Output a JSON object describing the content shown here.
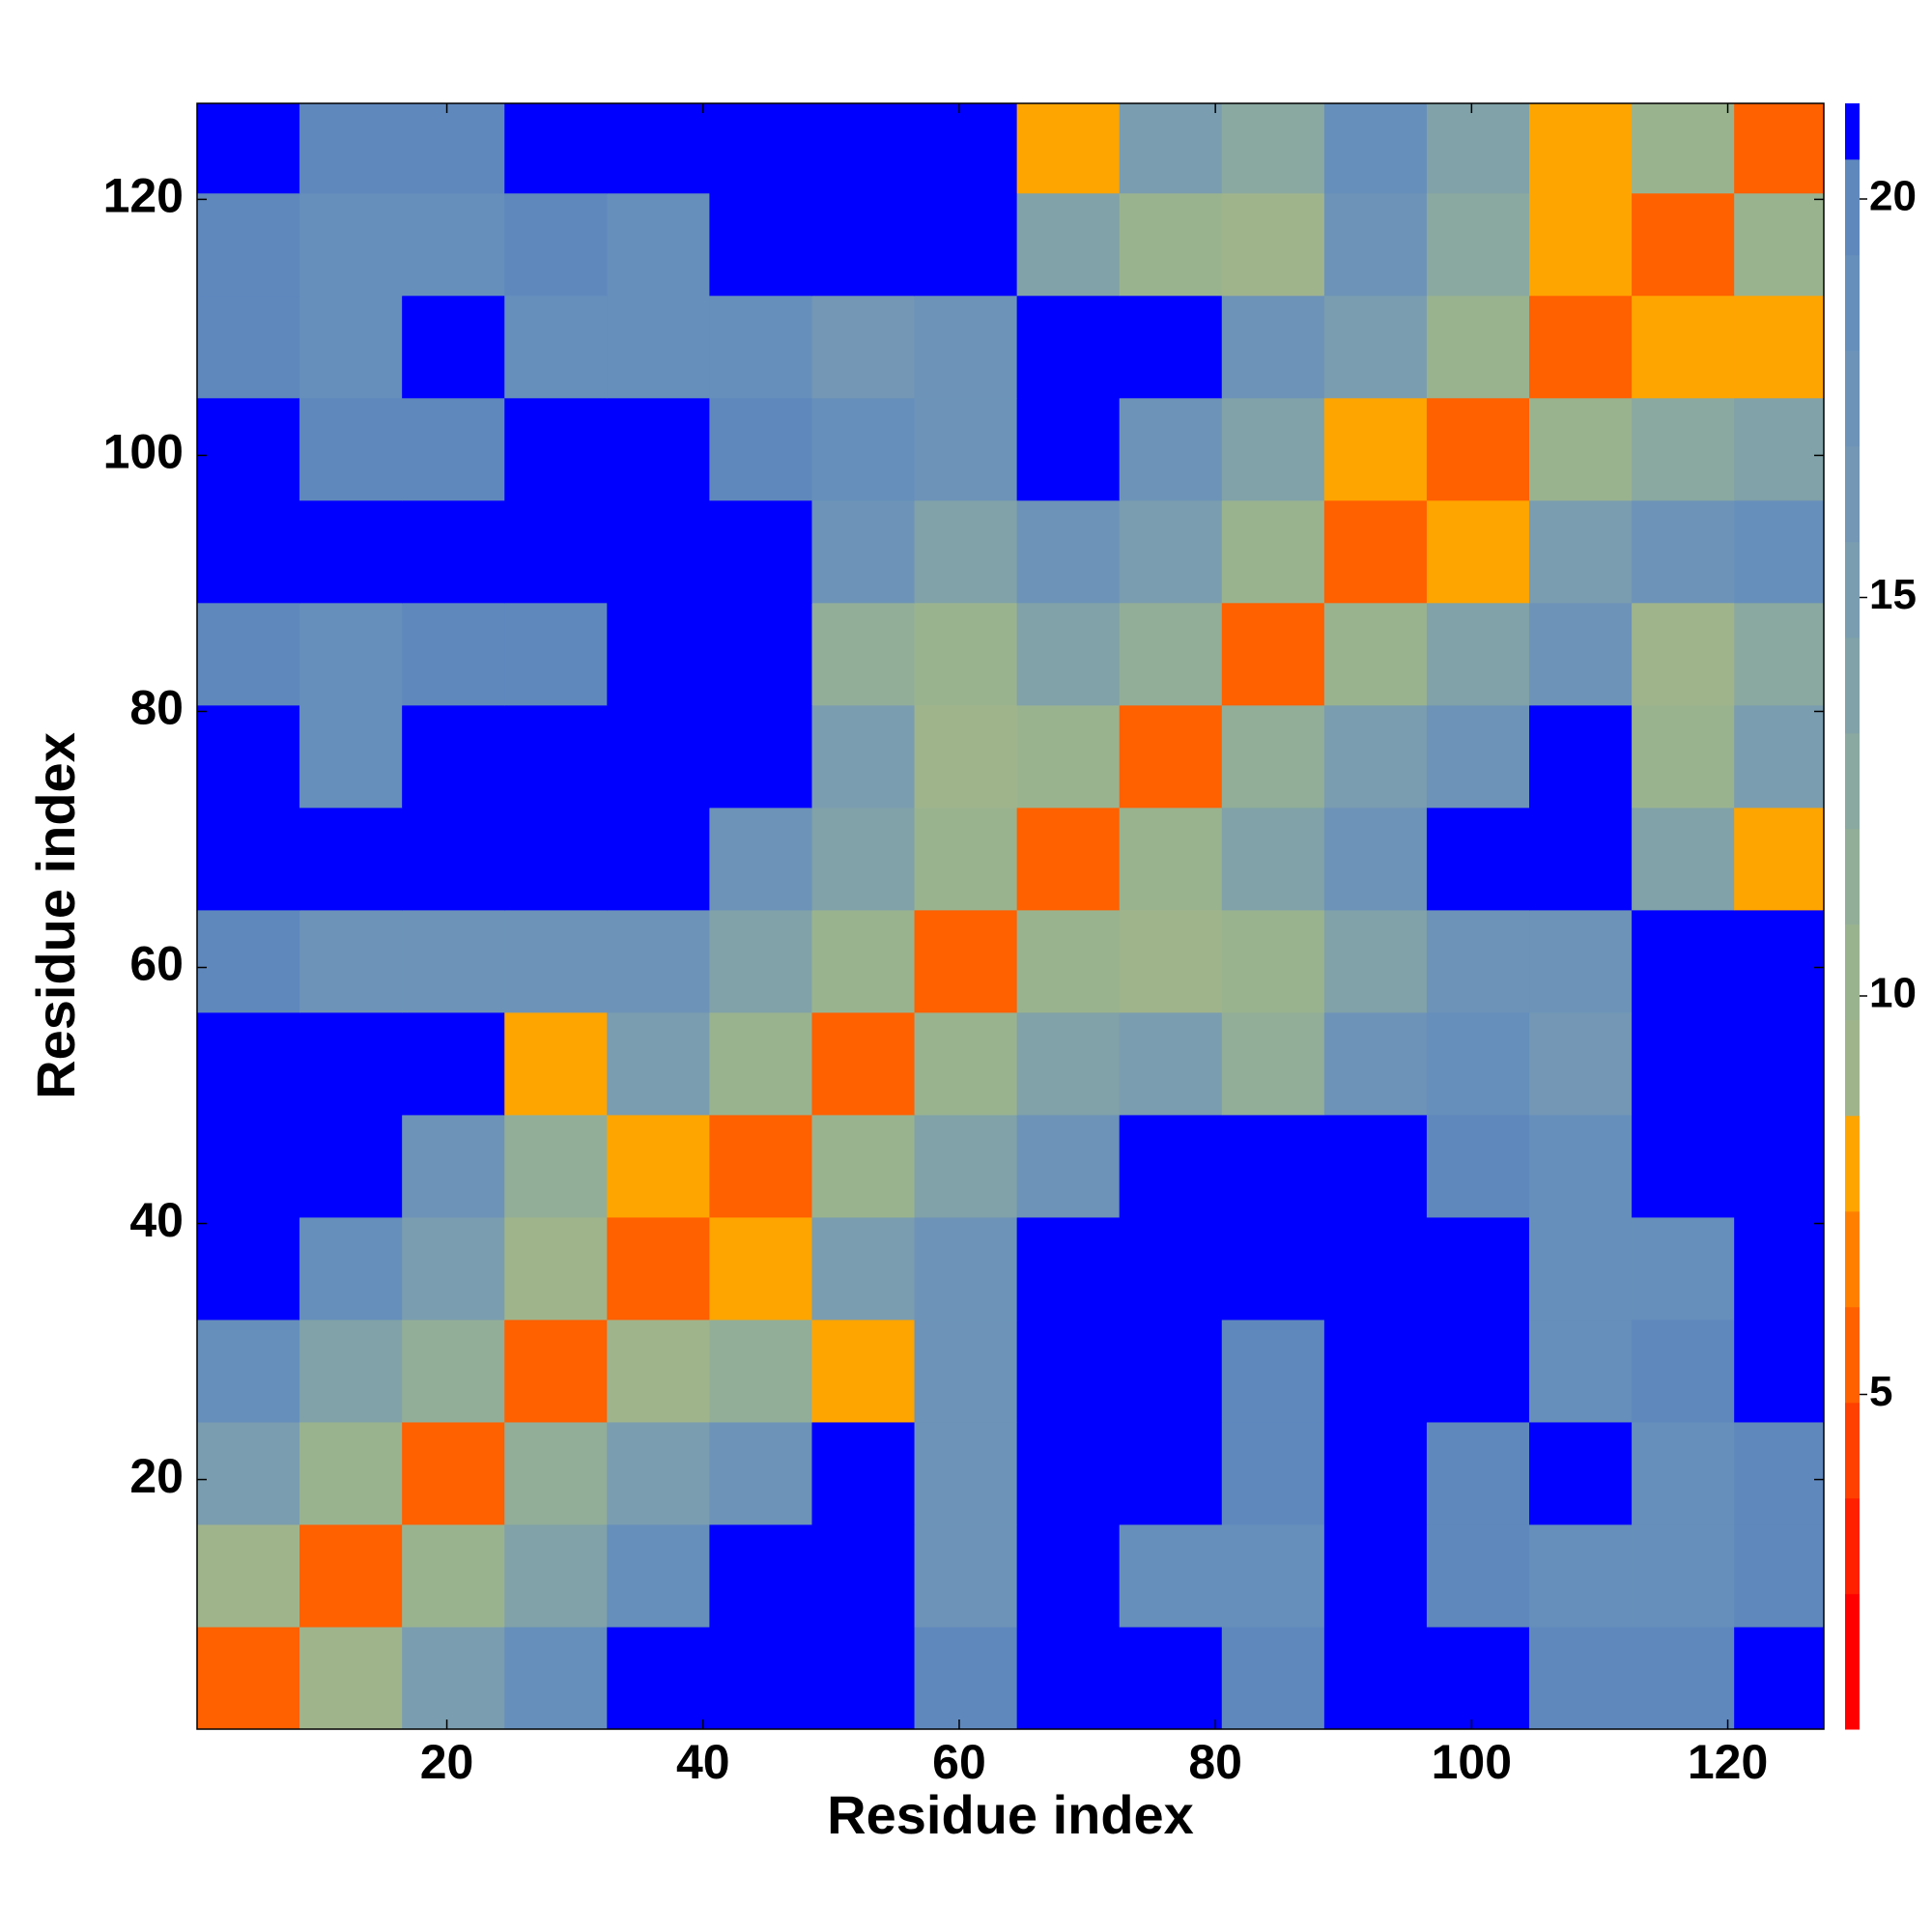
{
  "chart_data": {
    "type": "heatmap",
    "xlabel": "Residue index",
    "ylabel": "Residue index",
    "x_bins": [
      0.5,
      8.5,
      16.5,
      24.5,
      32.5,
      40.5,
      48.5,
      56.5,
      64.5,
      72.5,
      80.5,
      88.5,
      96.5,
      104.5,
      112.5,
      120.5,
      127.5
    ],
    "y_bins": [
      0.5,
      8.5,
      16.5,
      24.5,
      32.5,
      40.5,
      48.5,
      56.5,
      64.5,
      72.5,
      80.5,
      88.5,
      96.5,
      104.5,
      112.5,
      120.5,
      127.5
    ],
    "values": [
      [
        6,
        9,
        15,
        19,
        21,
        21,
        21,
        20,
        21,
        21,
        20,
        21,
        21,
        20,
        20,
        21
      ],
      [
        9,
        6,
        10,
        14,
        19,
        21,
        21,
        18,
        21,
        19,
        19,
        21,
        20,
        19,
        19,
        20
      ],
      [
        15,
        10,
        6,
        11,
        15,
        18,
        21,
        17,
        21,
        21,
        20,
        21,
        20,
        21,
        19,
        20
      ],
      [
        19,
        14,
        11,
        6,
        9,
        12,
        8,
        17,
        21,
        21,
        20,
        21,
        21,
        19,
        20,
        21
      ],
      [
        21,
        19,
        15,
        9,
        6,
        8,
        15,
        18,
        21,
        21,
        21,
        21,
        21,
        19,
        19,
        21
      ],
      [
        21,
        21,
        18,
        12,
        8,
        6,
        10,
        14,
        17,
        21,
        21,
        21,
        20,
        19,
        21,
        21
      ],
      [
        21,
        21,
        21,
        8,
        15,
        10,
        6,
        10,
        14,
        15,
        11,
        17,
        19,
        16,
        21,
        21
      ],
      [
        20,
        18,
        17,
        17,
        18,
        14,
        10,
        6,
        10,
        9,
        10,
        14,
        18,
        17,
        21,
        21
      ],
      [
        21,
        21,
        21,
        21,
        21,
        17,
        14,
        10,
        6,
        10,
        14,
        17,
        21,
        21,
        14,
        8
      ],
      [
        21,
        19,
        21,
        21,
        21,
        21,
        15,
        9,
        10,
        6,
        11,
        15,
        17,
        21,
        10,
        15
      ],
      [
        20,
        19,
        20,
        20,
        21,
        21,
        11,
        10,
        14,
        11,
        6,
        10,
        14,
        17,
        9,
        13
      ],
      [
        21,
        21,
        21,
        21,
        21,
        21,
        17,
        14,
        17,
        15,
        10,
        6,
        8,
        15,
        17,
        19
      ],
      [
        21,
        20,
        20,
        21,
        21,
        20,
        19,
        18,
        21,
        17,
        14,
        8,
        6,
        10,
        13,
        14
      ],
      [
        20,
        19,
        21,
        19,
        19,
        19,
        16,
        17,
        21,
        21,
        17,
        15,
        10,
        6,
        8,
        8
      ],
      [
        20,
        19,
        19,
        20,
        19,
        21,
        21,
        21,
        14,
        10,
        9,
        17,
        13,
        8,
        6,
        10
      ],
      [
        21,
        20,
        20,
        21,
        21,
        21,
        21,
        21,
        8,
        15,
        13,
        19,
        14,
        8,
        10,
        6
      ]
    ],
    "xlim": [
      0.5,
      127.5
    ],
    "ylim": [
      0.5,
      127.5
    ],
    "xticks": [
      20,
      40,
      60,
      80,
      100,
      120
    ],
    "yticks": [
      20,
      40,
      60,
      80,
      100,
      120
    ],
    "clim": [
      0.8,
      21.2
    ],
    "cticks": [
      5,
      10,
      15,
      20
    ],
    "colorscale": [
      {
        "max": 2.5,
        "color": "#ff0000"
      },
      {
        "max": 3.7,
        "color": "#ff2000"
      },
      {
        "max": 4.9,
        "color": "#ff4000"
      },
      {
        "max": 6.1,
        "color": "#ff6000"
      },
      {
        "max": 7.3,
        "color": "#ff8000"
      },
      {
        "max": 8.5,
        "color": "#ffa500"
      },
      {
        "max": 9.7,
        "color": "#a0b48c"
      },
      {
        "max": 10.9,
        "color": "#9ab38f"
      },
      {
        "max": 12.1,
        "color": "#92ae98"
      },
      {
        "max": 13.3,
        "color": "#8aa9a0"
      },
      {
        "max": 14.5,
        "color": "#80a2a8"
      },
      {
        "max": 15.7,
        "color": "#7a9db0"
      },
      {
        "max": 16.9,
        "color": "#7397b4"
      },
      {
        "max": 18.1,
        "color": "#6d93b8"
      },
      {
        "max": 19.3,
        "color": "#668fbb"
      },
      {
        "max": 20.5,
        "color": "#5f88bd"
      },
      {
        "max": 21.2,
        "color": "#0000ff"
      }
    ]
  }
}
